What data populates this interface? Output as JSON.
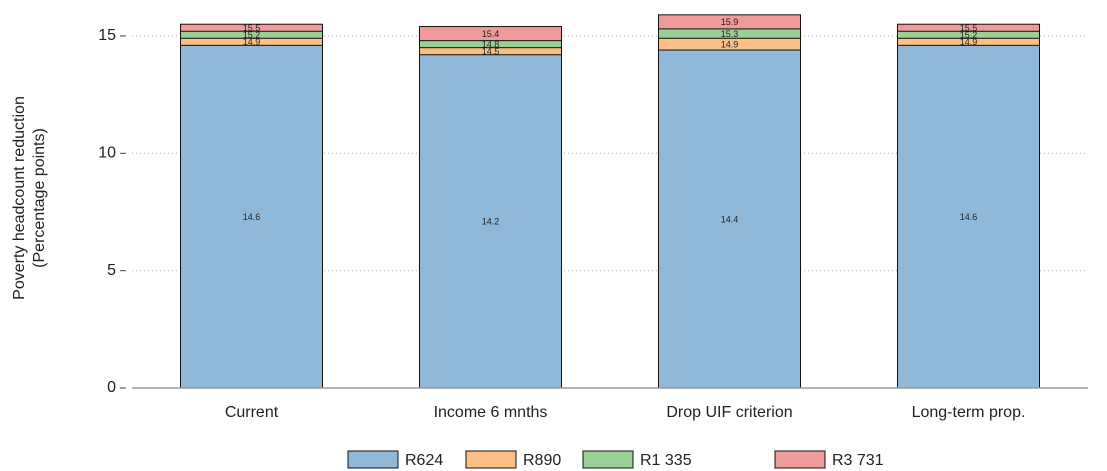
{
  "chart_data": {
    "type": "bar",
    "y_label": [
      "Poverty headcount reduction",
      "(Percentage points)"
    ],
    "categories": [
      "Current",
      "Income 6 mnths",
      "Drop UIF criterion",
      "Long-term prop."
    ],
    "series": [
      {
        "name": "R624",
        "color": "#8fb8d9",
        "values": [
          14.6,
          14.2,
          14.4,
          14.6
        ]
      },
      {
        "name": "R890",
        "color": "#fdbf86",
        "values": [
          14.9,
          14.5,
          14.9,
          14.9
        ]
      },
      {
        "name": "R1 335",
        "color": "#98d095",
        "values": [
          15.2,
          14.8,
          15.3,
          15.2
        ]
      },
      {
        "name": "R3 731",
        "color": "#ef9b99",
        "values": [
          15.5,
          15.4,
          15.9,
          15.5
        ]
      }
    ],
    "ylim": [
      0,
      16.4
    ],
    "yticks": [
      0,
      5,
      10,
      15
    ],
    "grid": true
  }
}
